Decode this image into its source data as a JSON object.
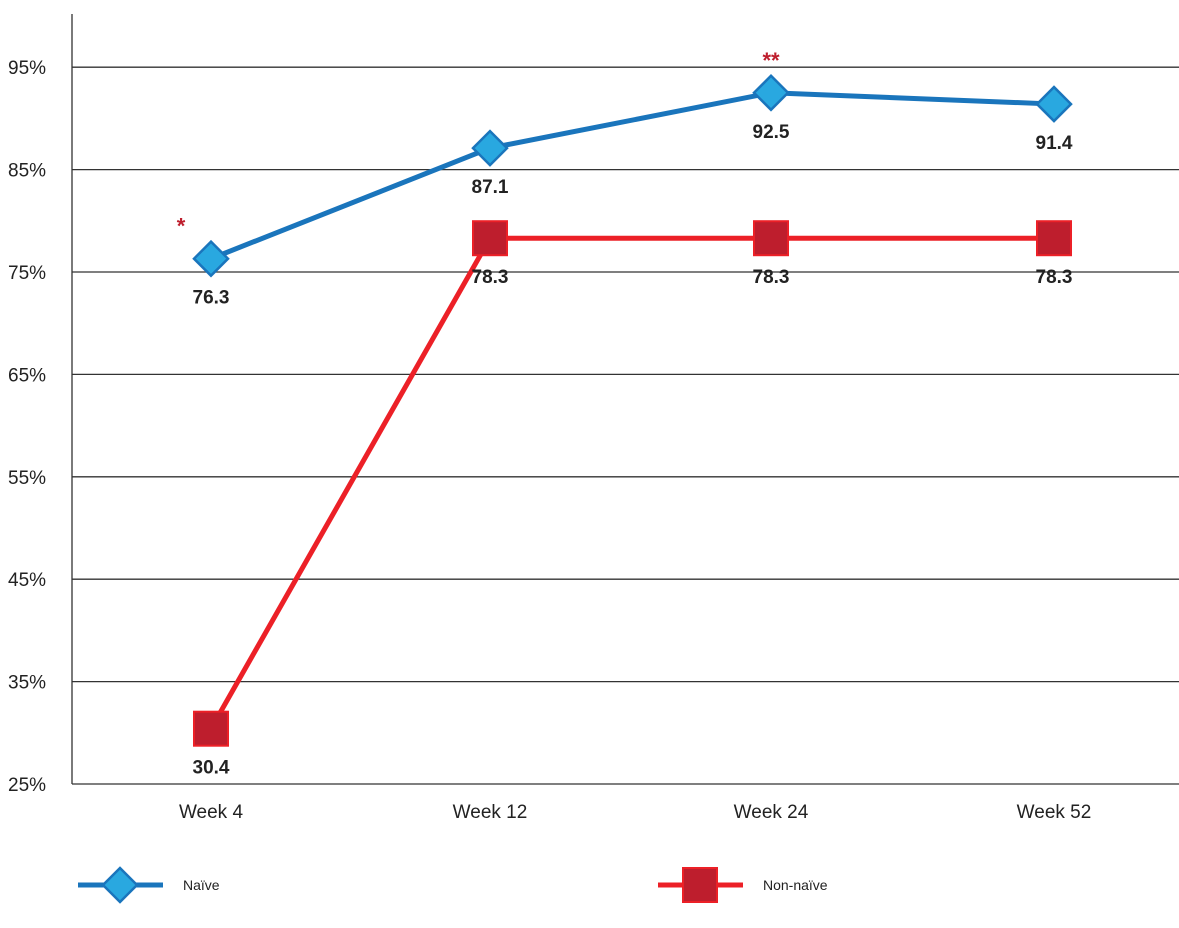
{
  "chart_data": {
    "type": "line",
    "categories": [
      "Week 4",
      "Week 12",
      "Week 24",
      "Week 52"
    ],
    "series": [
      {
        "name": "Naïve",
        "values": [
          76.3,
          87.1,
          92.5,
          91.4
        ],
        "labels": [
          "76.3",
          "87.1",
          "92.5",
          "91.4"
        ],
        "color": "#1a75bc",
        "marker_color": "#29a8e0",
        "marker": "diamond"
      },
      {
        "name": "Non-naïve",
        "values": [
          30.4,
          78.3,
          78.3,
          78.3
        ],
        "labels": [
          "30.4",
          "78.3",
          "78.3",
          "78.3"
        ],
        "color": "#ec2027",
        "marker_color": "#be1e2d",
        "marker": "square"
      }
    ],
    "yticks": [
      "25%",
      "35%",
      "45%",
      "55%",
      "65%",
      "75%",
      "85%",
      "95%"
    ],
    "ylim": [
      25,
      100
    ],
    "grid": true,
    "legend_position": "bottom",
    "annotations": [
      {
        "text": "*",
        "category": "Week 4",
        "color": "#be1e2d"
      },
      {
        "text": "**",
        "category": "Week 24",
        "color": "#be1e2d"
      }
    ]
  }
}
